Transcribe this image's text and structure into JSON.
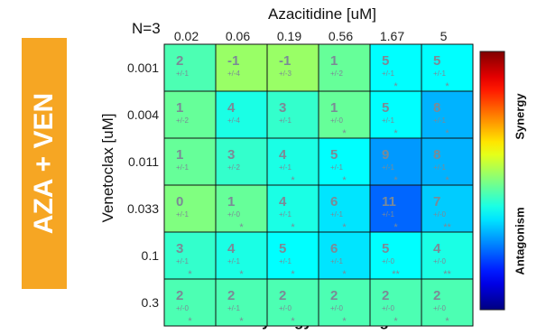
{
  "banner": {
    "text": "AZA + VEN",
    "color": "#f6a623"
  },
  "n_label": "N=3",
  "colorbar": {
    "top_label": "Synergy",
    "bottom_label": "Antagonism"
  },
  "chart_data": {
    "type": "heatmap",
    "title": "Loewe synergy and antagonism",
    "xlabel": "Azacitidine [uM]",
    "ylabel": "Venetoclax [uM]",
    "x_categories": [
      "0.02",
      "0.06",
      "0.19",
      "0.56",
      "1.67",
      "5"
    ],
    "y_categories": [
      "0.001",
      "0.004",
      "0.011",
      "0.033",
      "0.1",
      "0.3"
    ],
    "values": [
      [
        2,
        -1,
        -1,
        1,
        5,
        5
      ],
      [
        1,
        4,
        3,
        1,
        5,
        8
      ],
      [
        1,
        3,
        4,
        5,
        9,
        8
      ],
      [
        0,
        1,
        4,
        6,
        11,
        7
      ],
      [
        3,
        4,
        5,
        6,
        5,
        4
      ],
      [
        2,
        2,
        2,
        2,
        2,
        2
      ]
    ],
    "errors": [
      [
        "+/-1",
        "+/-4",
        "+/-3",
        "+/-2",
        "+/-1",
        "+/-1"
      ],
      [
        "+/-2",
        "+/-4",
        "+/-1",
        "+/-0",
        "+/-1",
        "+/-1"
      ],
      [
        "+/-1",
        "+/-2",
        "+/-1",
        "+/-1",
        "+/-1",
        "+/-1"
      ],
      [
        "+/-1",
        "+/-0",
        "+/-1",
        "+/-1",
        "+/-1",
        "+/-0"
      ],
      [
        "+/-1",
        "+/-1",
        "+/-1",
        "+/-1",
        "+/-0",
        "+/-0"
      ],
      [
        "+/-0",
        "+/-1",
        "+/-0",
        "+/-0",
        "+/-0",
        "+/-0"
      ]
    ],
    "significance": [
      [
        "",
        "",
        "",
        "",
        "*",
        "*"
      ],
      [
        "",
        "",
        "",
        "*",
        "*",
        "*"
      ],
      [
        "",
        "",
        "*",
        "*",
        "*",
        "*"
      ],
      [
        "",
        "*",
        "*",
        "*",
        "*",
        "**"
      ],
      [
        "*",
        "*",
        "*",
        "*",
        "**",
        "**"
      ],
      [
        "*",
        "*",
        "*",
        "*",
        "*",
        "*"
      ]
    ],
    "colormap": "jet",
    "color_range_approx": [
      -20,
      20
    ],
    "grid": true
  }
}
